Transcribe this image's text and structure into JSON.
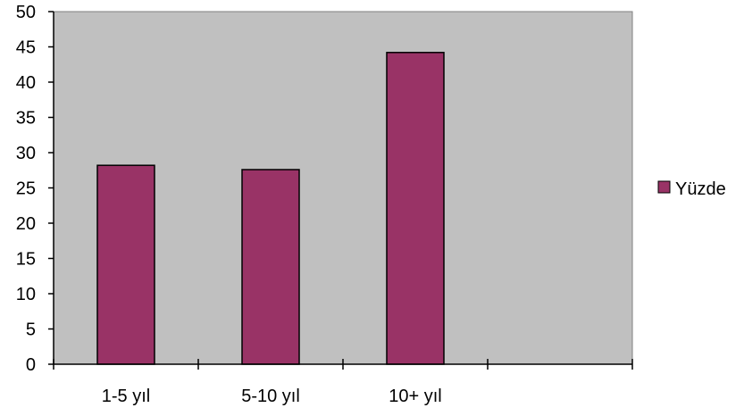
{
  "chart_data": {
    "type": "bar",
    "categories": [
      "1-5 yıl",
      "5-10 yıl",
      "10+ yıl",
      ""
    ],
    "series": [
      {
        "name": "Yüzde",
        "values": [
          28.2,
          27.6,
          44.2,
          null
        ]
      }
    ],
    "ylim": [
      0,
      50
    ],
    "yticks": [
      0,
      5,
      10,
      15,
      20,
      25,
      30,
      35,
      40,
      45,
      50
    ],
    "grid": false,
    "legend_position": "right",
    "colors": {
      "plot_background": "#c0c0c0",
      "bar_fill": "#993366",
      "bar_stroke": "#000000",
      "axis": "#000000"
    }
  }
}
